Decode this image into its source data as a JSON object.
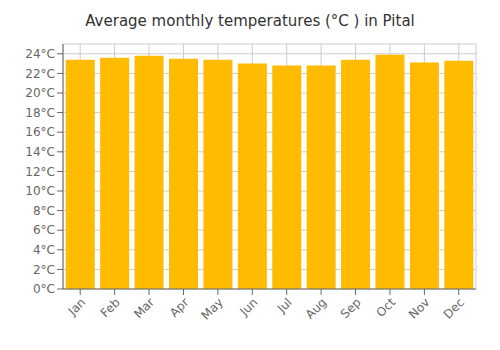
{
  "chart_data": {
    "type": "bar",
    "title": "Average monthly temperatures (°C ) in Pital",
    "categories": [
      "Jan",
      "Feb",
      "Mar",
      "Apr",
      "May",
      "Jun",
      "Jul",
      "Aug",
      "Sep",
      "Oct",
      "Nov",
      "Dec"
    ],
    "values": [
      23.4,
      23.6,
      23.8,
      23.5,
      23.4,
      23.0,
      22.8,
      22.8,
      23.4,
      23.9,
      23.1,
      23.3
    ],
    "color": "#FFBB00",
    "ylim": [
      0,
      25
    ],
    "yticks": [
      {
        "value": 0,
        "label": "0°C"
      },
      {
        "value": 2,
        "label": "2°C"
      },
      {
        "value": 4,
        "label": "4°C"
      },
      {
        "value": 6,
        "label": "6°C"
      },
      {
        "value": 8,
        "label": "8°C"
      },
      {
        "value": 10,
        "label": "10°C"
      },
      {
        "value": 12,
        "label": "12°C"
      },
      {
        "value": 14,
        "label": "14°C"
      },
      {
        "value": 16,
        "label": "16°C"
      },
      {
        "value": 18,
        "label": "18°C"
      },
      {
        "value": 20,
        "label": "20°C"
      },
      {
        "value": 22,
        "label": "22°C"
      },
      {
        "value": 24,
        "label": "24°C"
      }
    ],
    "grid": true
  }
}
